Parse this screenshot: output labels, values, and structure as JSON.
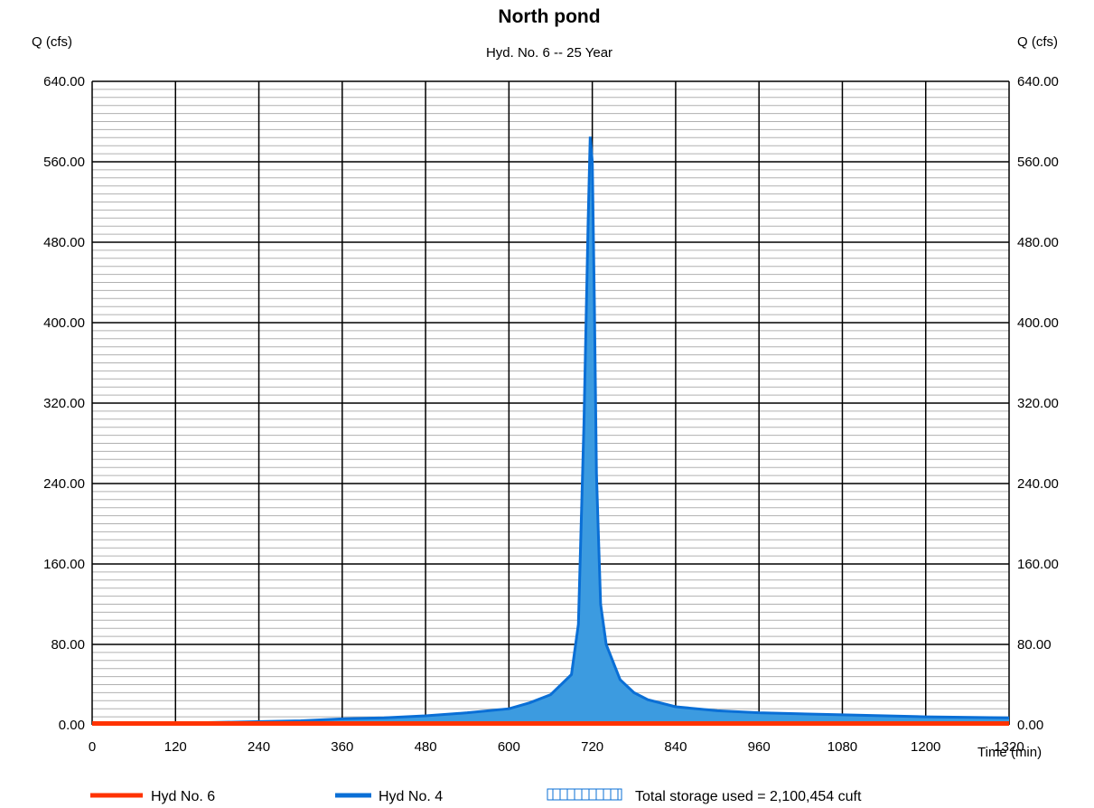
{
  "colors": {
    "hyd6": "#ff3300",
    "hyd4_line": "#0a6fd6",
    "hyd4_fill": "#3c9be0",
    "grid_major": "#000000",
    "grid_minor": "#b0b0b0"
  },
  "chart_data": {
    "type": "area",
    "title": "North pond",
    "subtitle": "Hyd. No. 6 -- 25 Year",
    "ylabel_left": "Q (cfs)",
    "ylabel_right": "Q (cfs)",
    "xlabel": "Time (min)",
    "xlim": [
      0,
      1320
    ],
    "ylim": [
      0,
      640
    ],
    "x_ticks": [
      0,
      120,
      240,
      360,
      480,
      600,
      720,
      840,
      960,
      1080,
      1200,
      1320
    ],
    "x_tick_labels": [
      "0",
      "120",
      "240",
      "360",
      "480",
      "600",
      "720",
      "840",
      "960",
      "1080",
      "1200",
      "1320"
    ],
    "y_ticks": [
      0,
      80,
      160,
      240,
      320,
      400,
      480,
      560,
      640
    ],
    "y_tick_labels": [
      "0.00",
      "80.00",
      "160.00",
      "240.00",
      "320.00",
      "400.00",
      "480.00",
      "560.00",
      "640.00"
    ],
    "y_minor_step": 8,
    "grid": true,
    "legend_position": "bottom",
    "series": [
      {
        "name": "Hyd No. 6",
        "kind": "line",
        "x": [
          0,
          1320
        ],
        "y": [
          0.5,
          0.5
        ]
      },
      {
        "name": "Hyd No. 4",
        "kind": "area",
        "x": [
          150,
          300,
          360,
          420,
          480,
          540,
          600,
          630,
          660,
          690,
          700,
          708,
          714,
          717,
          720,
          723,
          726,
          732,
          740,
          760,
          780,
          800,
          840,
          900,
          960,
          1080,
          1200,
          1320
        ],
        "y": [
          2,
          4,
          6,
          7,
          9,
          12,
          16,
          22,
          30,
          50,
          100,
          300,
          500,
          585,
          560,
          420,
          250,
          120,
          80,
          45,
          32,
          25,
          18,
          14,
          12,
          10,
          8,
          7
        ]
      }
    ],
    "storage_label": "Total storage used = 2,100,454 cuft"
  }
}
